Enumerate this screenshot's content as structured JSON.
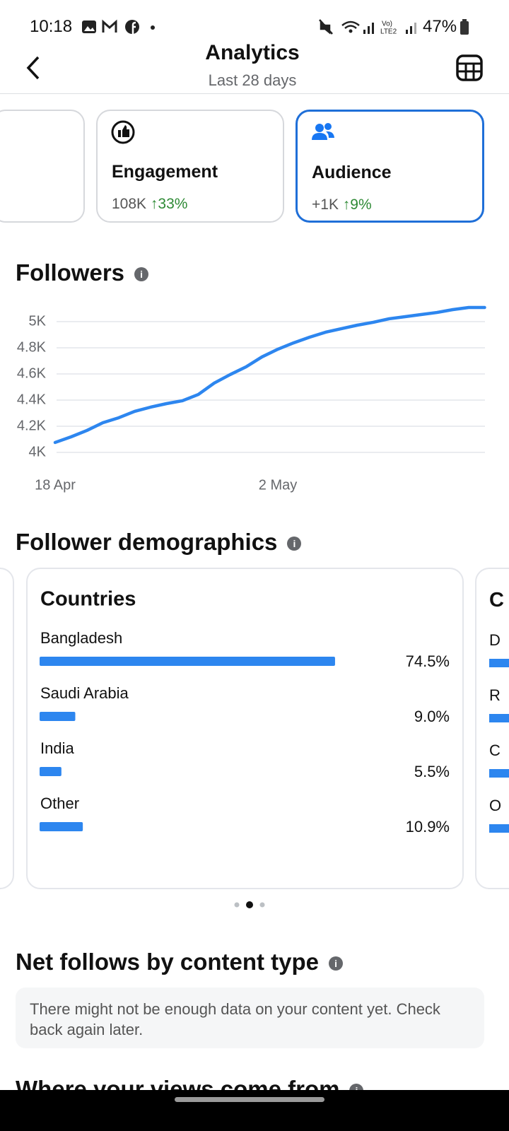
{
  "status_bar": {
    "time": "10:18",
    "battery": "47%"
  },
  "header": {
    "title": "Analytics",
    "subtitle": "Last 28 days"
  },
  "cards": [
    {
      "label": "Engagement",
      "value": "108K",
      "change": "33%"
    },
    {
      "label": "Audience",
      "value": "+1K",
      "change": "9%"
    }
  ],
  "sections": {
    "demographics": "Follower demographics",
    "net_follows": "Net follows by content type",
    "net_follows_message": "There might not be enough data on your content yet. Check back again later.",
    "views": "Where your views come from"
  },
  "next_card": {
    "title": "C",
    "items": [
      "D",
      "R",
      "C",
      "O"
    ]
  },
  "chart_data": [
    {
      "type": "line",
      "title": "Followers",
      "color": "#2d86ef",
      "grid": true,
      "categories": [
        "18 Apr",
        null,
        null,
        null,
        null,
        null,
        null,
        null,
        null,
        null,
        null,
        null,
        null,
        null,
        "2 May",
        null,
        null,
        null,
        null,
        null,
        null,
        null,
        null,
        null,
        null,
        null,
        null,
        null
      ],
      "values": [
        4076,
        4119,
        4168,
        4227,
        4265,
        4314,
        4346,
        4373,
        4395,
        4443,
        4530,
        4595,
        4654,
        4730,
        4789,
        4838,
        4881,
        4919,
        4946,
        4973,
        4995,
        5022,
        5038,
        5054,
        5070,
        5092,
        5108,
        5108
      ],
      "ylim": [
        4000,
        5120
      ],
      "yticks": [
        {
          "value": 4000,
          "label": "4K"
        },
        {
          "value": 4200,
          "label": "4.2K"
        },
        {
          "value": 4400,
          "label": "4.4K"
        },
        {
          "value": 4600,
          "label": "4.6K"
        },
        {
          "value": 4800,
          "label": "4.8K"
        },
        {
          "value": 5000,
          "label": "5K"
        }
      ]
    },
    {
      "type": "hbar",
      "title": "Countries",
      "color": "#2d86ef",
      "categories": [
        "Bangladesh",
        "Saudi Arabia",
        "India",
        "Other"
      ],
      "values": [
        74.5,
        9.0,
        5.5,
        10.9
      ],
      "value_labels": [
        "74.5%",
        "9.0%",
        "5.5%",
        "10.9%"
      ],
      "xlim": [
        0,
        100
      ]
    }
  ]
}
